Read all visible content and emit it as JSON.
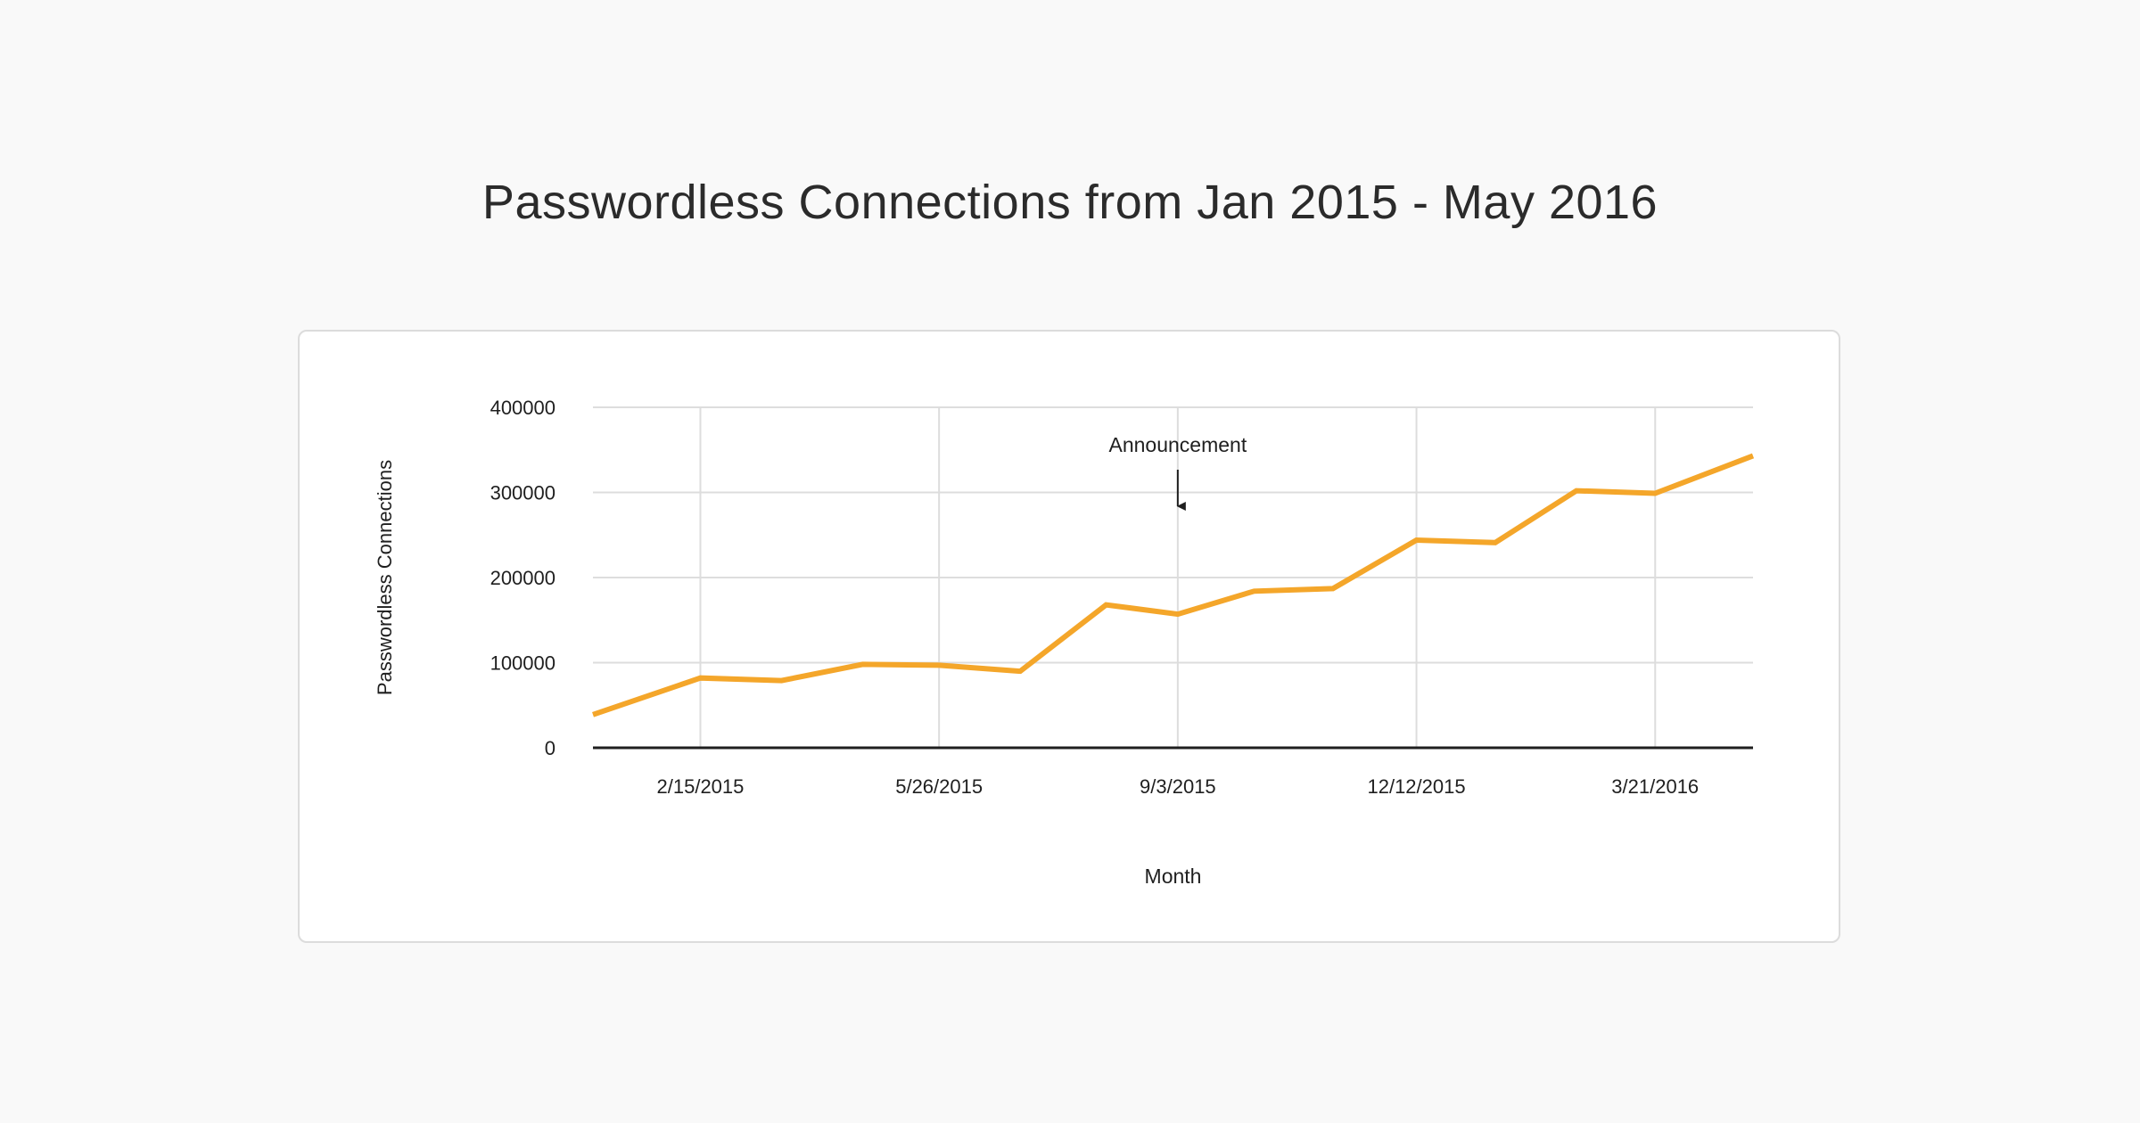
{
  "page": {
    "title": "Passwordless Connections from Jan 2015 - May 2016"
  },
  "colors": {
    "background": "#f9f9f9",
    "card": "#ffffff",
    "line": "#f4a62a",
    "grid": "#dddddd",
    "axis": "#1f1f1f",
    "text": "#1f1f1f"
  },
  "chart_data": {
    "type": "line",
    "title": "Passwordless Connections from Jan 2015 - May 2016",
    "xlabel": "Month",
    "ylabel": "Passwordless Connections",
    "x_type": "date",
    "xlim": [
      "2015-01-01",
      "2016-05-01"
    ],
    "ylim": [
      0,
      400000
    ],
    "yticks": [
      0,
      100000,
      200000,
      300000,
      400000
    ],
    "ytick_labels": [
      "0",
      "100000",
      "200000",
      "300000",
      "400000"
    ],
    "xticks": [
      "2015-02-15",
      "2015-05-26",
      "2015-09-03",
      "2015-12-12",
      "2016-03-21"
    ],
    "xtick_labels": [
      "2/15/2015",
      "5/26/2015",
      "9/3/2015",
      "12/12/2015",
      "3/21/2016"
    ],
    "grid": true,
    "legend": "none",
    "series": [
      {
        "color": "#f4a62a",
        "x": [
          "2015-01-01",
          "2015-02-15",
          "2015-03-21",
          "2015-04-24",
          "2015-05-26",
          "2015-06-29",
          "2015-08-04",
          "2015-09-03",
          "2015-10-05",
          "2015-11-07",
          "2015-12-12",
          "2016-01-14",
          "2016-02-17",
          "2016-03-21",
          "2016-05-01"
        ],
        "values": [
          39000,
          82000,
          79000,
          98000,
          97000,
          90000,
          168000,
          157000,
          184000,
          187000,
          244000,
          241000,
          302000,
          299000,
          343000
        ]
      }
    ],
    "annotations": [
      {
        "text": "Announcement",
        "x": "2015-09-03",
        "arrow": "down"
      }
    ]
  }
}
